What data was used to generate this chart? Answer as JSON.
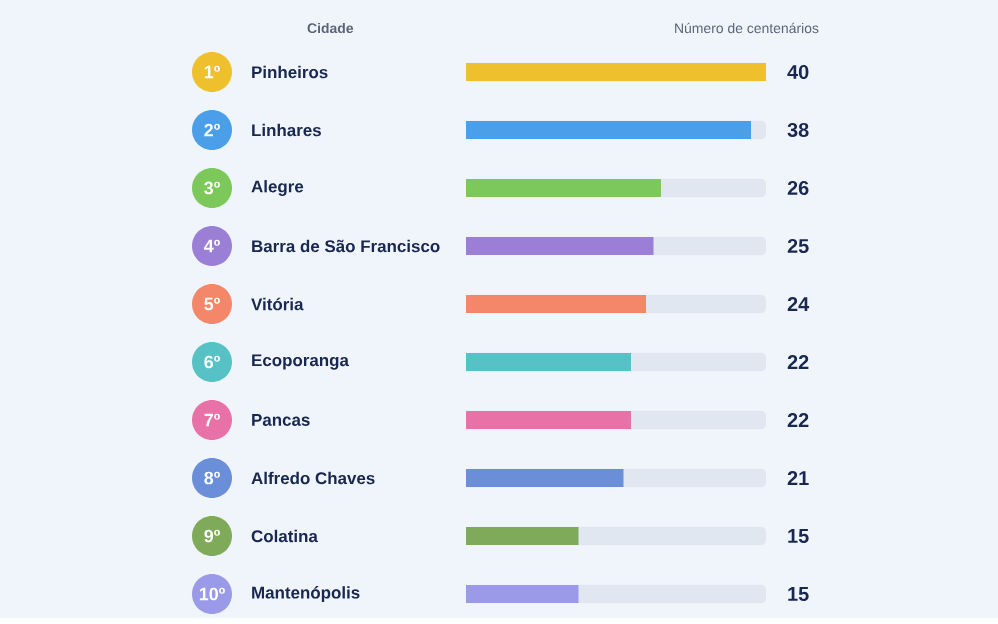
{
  "chart_data": {
    "type": "bar",
    "orientation": "horizontal",
    "ylabel": "Cidade",
    "xlabel": "Número de centenários",
    "categories": [
      "Pinheiros",
      "Linhares",
      "Alegre",
      "Barra de São Francisco",
      "Vitória",
      "Ecoporanga",
      "Pancas",
      "Alfredo Chaves",
      "Colatina",
      "Mantenópolis"
    ],
    "values": [
      40,
      38,
      26,
      25,
      24,
      22,
      22,
      21,
      15,
      15
    ],
    "colors": [
      "#efc02e",
      "#4a9fe8",
      "#7cc85a",
      "#9b7fd6",
      "#f4876a",
      "#56c2c6",
      "#e872a8",
      "#6a8fd8",
      "#7faa5a",
      "#9a9ae8"
    ],
    "annotations": [
      "1º",
      "2º",
      "3º",
      "4º",
      "5º",
      "6º",
      "7º",
      "8º",
      "9º",
      "10º"
    ],
    "xlim": [
      0,
      40
    ],
    "data_labels": true
  }
}
